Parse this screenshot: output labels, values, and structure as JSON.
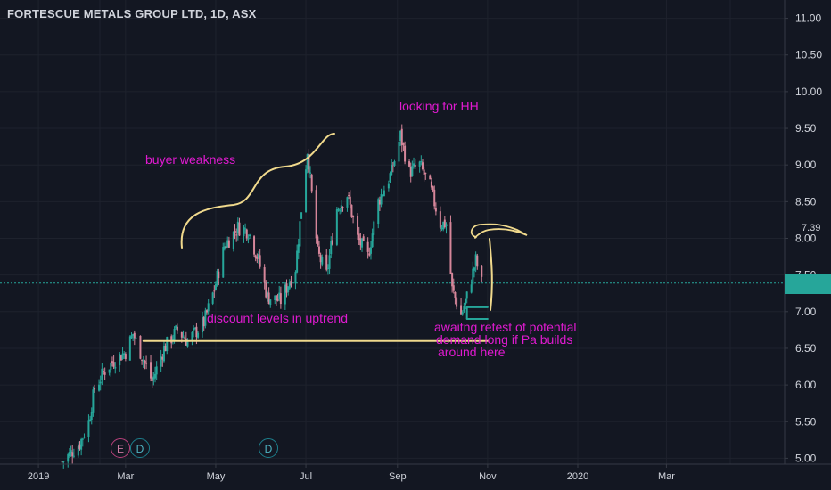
{
  "header": {
    "title": "FORTESCUE METALS GROUP LTD, 1D, ASX"
  },
  "annotations": {
    "buyer_weakness": "buyer weakness",
    "looking_for_hh": "looking for HH",
    "discount_levels": "discount levels in uptrend",
    "demand_line1": "awaitng retest of potential",
    "demand_line2": "demand long if Pa builds",
    "demand_line3": "around here"
  },
  "level_tag": "7.39",
  "events": [
    {
      "letter": "E",
      "kind": "earnings",
      "date": "2019-03-07"
    },
    {
      "letter": "D",
      "kind": "dividend",
      "date": "2019-03-13"
    },
    {
      "letter": "D",
      "kind": "dividend",
      "date": "2019-07-03"
    }
  ],
  "colors": {
    "background": "#131722",
    "up": "#26a69a",
    "down": "#d6869a",
    "annotation_text": "#e01ad0",
    "drawing": "#f0d98c",
    "current_price_line": "#26a69a",
    "grid": "#1e222d"
  },
  "chart_data": {
    "type": "candlestick",
    "title": "FORTESCUE METALS GROUP LTD, 1D, ASX",
    "ylim": [
      4.92,
      11.25
    ],
    "y_ticks": [
      5.0,
      5.5,
      6.0,
      6.5,
      7.0,
      7.5,
      8.0,
      8.5,
      9.0,
      9.5,
      10.0,
      10.5,
      11.0
    ],
    "x_range": [
      "2018-12-06",
      "2020-05-20"
    ],
    "x_ticks": [
      {
        "label": "2019",
        "date": "2019-01-01"
      },
      {
        "label": "Mar",
        "date": "2019-03-01"
      },
      {
        "label": "May",
        "date": "2019-05-01"
      },
      {
        "label": "Jul",
        "date": "2019-07-01"
      },
      {
        "label": "Sep",
        "date": "2019-09-01"
      },
      {
        "label": "Nov",
        "date": "2019-11-01"
      },
      {
        "label": "2020",
        "date": "2020-01-01"
      },
      {
        "label": "Mar",
        "date": "2020-03-01"
      }
    ],
    "current_price": 7.39,
    "path": [
      [
        "2019-01-17",
        4.95
      ],
      [
        "2019-01-29",
        5.2
      ],
      [
        "2019-02-04",
        5.5
      ],
      [
        "2019-02-08",
        5.95
      ],
      [
        "2019-02-15",
        6.2
      ],
      [
        "2019-02-22",
        6.35
      ],
      [
        "2019-03-01",
        6.45
      ],
      [
        "2019-03-06",
        6.7
      ],
      [
        "2019-03-12",
        6.4
      ],
      [
        "2019-03-19",
        6.05
      ],
      [
        "2019-03-27",
        6.5
      ],
      [
        "2019-04-05",
        6.75
      ],
      [
        "2019-04-12",
        6.6
      ],
      [
        "2019-04-23",
        6.85
      ],
      [
        "2019-04-30",
        7.3
      ],
      [
        "2019-05-07",
        7.9
      ],
      [
        "2019-05-16",
        8.15
      ],
      [
        "2019-05-23",
        8.1
      ],
      [
        "2019-05-30",
        7.7
      ],
      [
        "2019-06-05",
        7.2
      ],
      [
        "2019-06-14",
        7.15
      ],
      [
        "2019-06-24",
        7.6
      ],
      [
        "2019-06-28",
        8.4
      ],
      [
        "2019-07-02",
        9.2
      ],
      [
        "2019-07-09",
        7.8
      ],
      [
        "2019-07-15",
        7.5
      ],
      [
        "2019-07-22",
        8.4
      ],
      [
        "2019-07-29",
        8.6
      ],
      [
        "2019-08-05",
        8.0
      ],
      [
        "2019-08-12",
        7.75
      ],
      [
        "2019-08-19",
        8.5
      ],
      [
        "2019-08-28",
        8.9
      ],
      [
        "2019-09-03",
        9.4
      ],
      [
        "2019-09-09",
        8.9
      ],
      [
        "2019-09-16",
        9.0
      ],
      [
        "2019-09-23",
        8.7
      ],
      [
        "2019-09-30",
        8.2
      ],
      [
        "2019-10-04",
        8.2
      ],
      [
        "2019-10-08",
        7.3
      ],
      [
        "2019-10-14",
        6.95
      ],
      [
        "2019-10-18",
        7.2
      ],
      [
        "2019-10-24",
        7.7
      ],
      [
        "2019-10-28",
        7.39
      ]
    ],
    "drawings": [
      {
        "type": "horizontal_line",
        "from": "2019-03-13",
        "to": "2019-11-01",
        "y": 6.6
      },
      {
        "type": "ray",
        "from": "2019-10-18",
        "to": "2019-11-01",
        "y": 7.06
      },
      {
        "type": "ray",
        "from": "2019-10-18",
        "to": "2019-11-01",
        "y": 6.9
      }
    ]
  }
}
